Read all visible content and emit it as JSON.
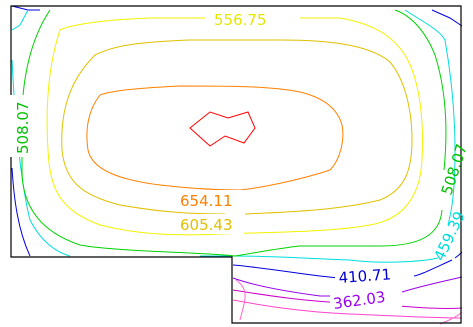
{
  "chart_data": {
    "type": "contour",
    "title": "",
    "xlabel": "",
    "ylabel": "",
    "grid": false,
    "legend": "none",
    "levels": [
      {
        "value": "654.11",
        "color": "#ff0000"
      },
      {
        "value": "654.11",
        "color": "#ff8000"
      },
      {
        "value": "605.43",
        "color": "#e6c800"
      },
      {
        "value": "556.75",
        "color": "#f2f200"
      },
      {
        "value": "508.07",
        "color": "#00d200"
      },
      {
        "value": "459.39",
        "color": "#00e6e6"
      },
      {
        "value": "410.71",
        "color": "#0000dd"
      },
      {
        "value": "362.03",
        "color": "#9900ee"
      }
    ],
    "labels": [
      {
        "text": "556.75",
        "color": "#e6e600"
      },
      {
        "text": "508.07",
        "color": "#00c000"
      },
      {
        "text": "654.11",
        "color": "#ff8000"
      },
      {
        "text": "605.43",
        "color": "#e0c000"
      },
      {
        "text": "508.07",
        "color": "#00c000"
      },
      {
        "text": "459.39",
        "color": "#00dddd"
      },
      {
        "text": "410.71",
        "color": "#0000cc"
      },
      {
        "text": "362.03",
        "color": "#9900ee"
      }
    ]
  }
}
